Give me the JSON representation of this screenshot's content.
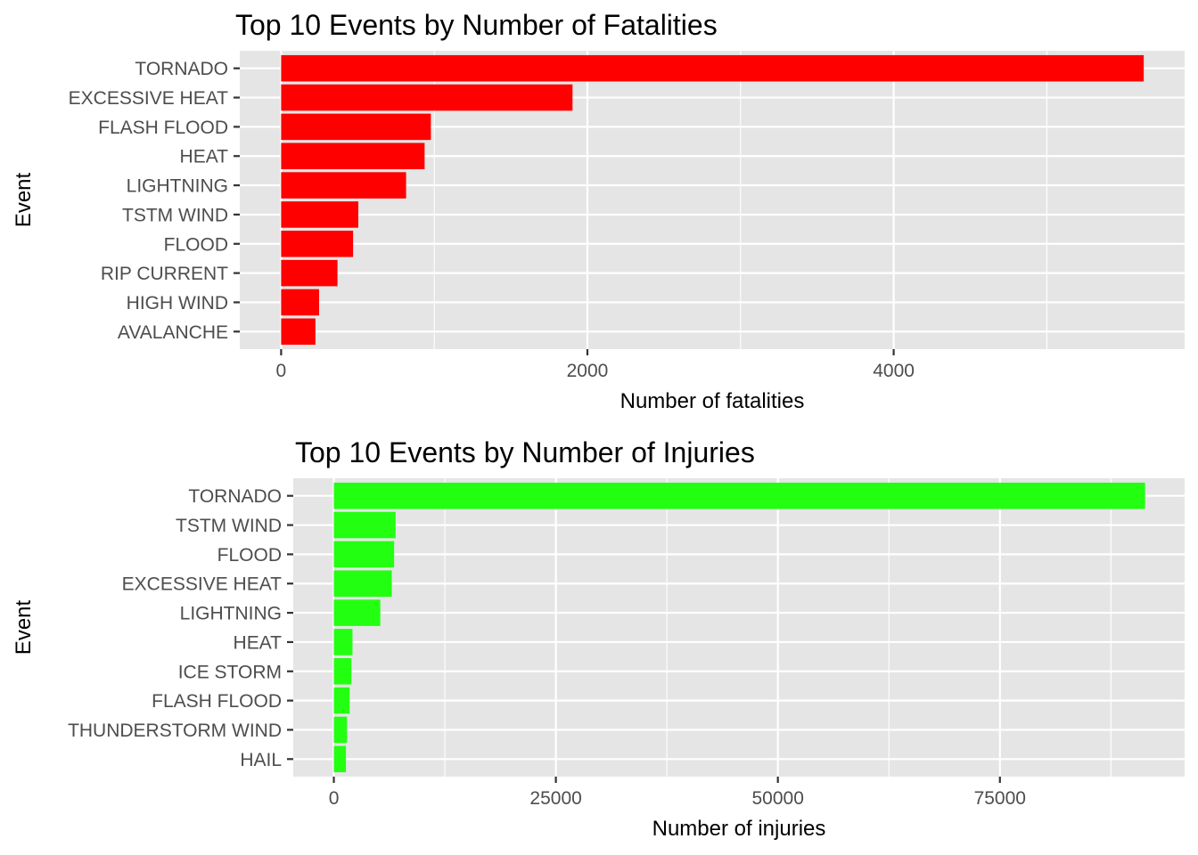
{
  "chart_data": [
    {
      "type": "bar",
      "orientation": "horizontal",
      "title": "Top 10 Events by Number of Fatalities",
      "xlabel": "Number of fatalities",
      "ylabel": "Event",
      "categories": [
        "TORNADO",
        "EXCESSIVE HEAT",
        "FLASH FLOOD",
        "HEAT",
        "LIGHTNING",
        "TSTM WIND",
        "FLOOD",
        "RIP CURRENT",
        "HIGH WIND",
        "AVALANCHE"
      ],
      "values": [
        5633,
        1903,
        978,
        937,
        816,
        504,
        470,
        368,
        248,
        224
      ],
      "xlim": [
        -270,
        5900
      ],
      "xticks": [
        0,
        2000,
        4000
      ],
      "xtick_labels": [
        "0",
        "2000",
        "4000"
      ],
      "bar_color": "#ff0000",
      "grid": true
    },
    {
      "type": "bar",
      "orientation": "horizontal",
      "title": "Top 10 Events by Number of Injuries",
      "xlabel": "Number of injuries",
      "ylabel": "Event",
      "categories": [
        "TORNADO",
        "TSTM WIND",
        "FLOOD",
        "EXCESSIVE HEAT",
        "LIGHTNING",
        "HEAT",
        "ICE STORM",
        "FLASH FLOOD",
        "THUNDERSTORM WIND",
        "HAIL"
      ],
      "values": [
        91346,
        6957,
        6789,
        6525,
        5230,
        2100,
        1975,
        1777,
        1488,
        1361
      ],
      "xlim": [
        -4570,
        95800
      ],
      "xticks": [
        0,
        25000,
        50000,
        75000
      ],
      "xtick_labels": [
        "0",
        "25000",
        "50000",
        "75000"
      ],
      "bar_color": "#22ff11",
      "grid": true
    }
  ]
}
